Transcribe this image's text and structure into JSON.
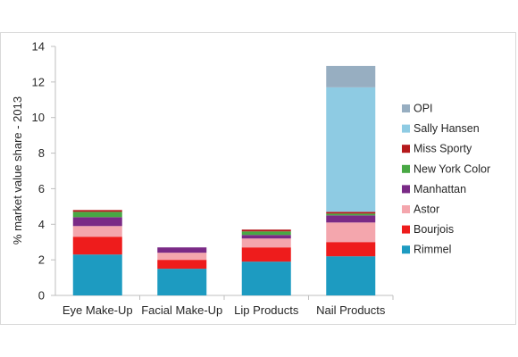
{
  "chart_data": {
    "type": "bar",
    "stacked": true,
    "ylabel": "% market value share - 2013",
    "ylim": [
      0,
      14
    ],
    "yticks": [
      0,
      2,
      4,
      6,
      8,
      10,
      12,
      14
    ],
    "grid": false,
    "legend_position": "right",
    "categories": [
      "Eye Make-Up",
      "Facial Make-Up",
      "Lip Products",
      "Nail Products"
    ],
    "series": [
      {
        "name": "Rimmel",
        "color": "#1d9bc1",
        "values": [
          2.3,
          1.5,
          1.9,
          2.2
        ]
      },
      {
        "name": "Bourjois",
        "color": "#ee1c1c",
        "values": [
          1.0,
          0.5,
          0.8,
          0.8
        ]
      },
      {
        "name": "Astor",
        "color": "#f4a6ad",
        "values": [
          0.6,
          0.4,
          0.5,
          1.1
        ]
      },
      {
        "name": "Manhattan",
        "color": "#7a2a86",
        "values": [
          0.5,
          0.3,
          0.2,
          0.4
        ]
      },
      {
        "name": "New York Color",
        "color": "#48a844",
        "values": [
          0.3,
          0.0,
          0.2,
          0.1
        ]
      },
      {
        "name": "Miss Sporty",
        "color": "#b5191c",
        "values": [
          0.1,
          0.0,
          0.1,
          0.1
        ]
      },
      {
        "name": "Sally Hansen",
        "color": "#8ecbe3",
        "values": [
          0,
          0,
          0,
          7.0
        ]
      },
      {
        "name": "OPI",
        "color": "#97aec1",
        "values": [
          0,
          0,
          0,
          1.2
        ]
      }
    ]
  }
}
